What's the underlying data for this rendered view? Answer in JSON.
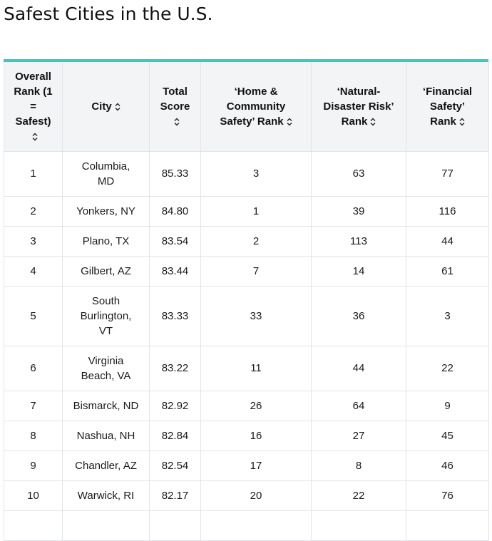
{
  "page": {
    "title": "Safest Cities in the U.S."
  },
  "table": {
    "headers": [
      "Overall Rank (1 = Safest)",
      "City",
      "Total Score",
      "‘Home & Community Safety’ Rank",
      "‘Natural-Disaster Risk’ Rank",
      "‘Financial Safety’ Rank"
    ],
    "rows": [
      [
        "1",
        "Columbia, MD",
        "85.33",
        "3",
        "63",
        "77"
      ],
      [
        "2",
        "Yonkers, NY",
        "84.80",
        "1",
        "39",
        "116"
      ],
      [
        "3",
        "Plano, TX",
        "83.54",
        "2",
        "113",
        "44"
      ],
      [
        "4",
        "Gilbert, AZ",
        "83.44",
        "7",
        "14",
        "61"
      ],
      [
        "5",
        "South Burlington, VT",
        "83.33",
        "33",
        "36",
        "3"
      ],
      [
        "6",
        "Virginia Beach, VA",
        "83.22",
        "11",
        "44",
        "22"
      ],
      [
        "7",
        "Bismarck, ND",
        "82.92",
        "26",
        "64",
        "9"
      ],
      [
        "8",
        "Nashua, NH",
        "82.84",
        "16",
        "27",
        "45"
      ],
      [
        "9",
        "Chandler, AZ",
        "82.54",
        "17",
        "8",
        "46"
      ],
      [
        "10",
        "Warwick, RI",
        "82.17",
        "20",
        "22",
        "76"
      ]
    ]
  }
}
